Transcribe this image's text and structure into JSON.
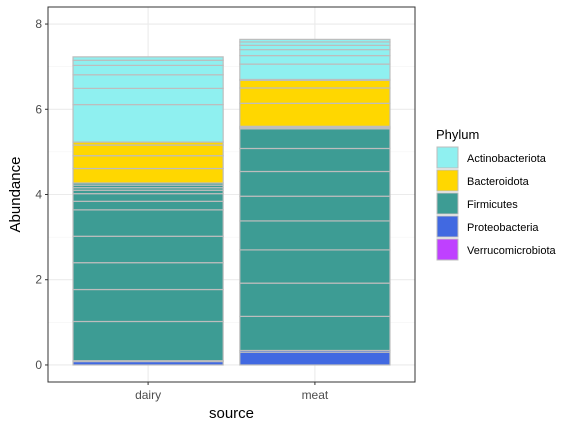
{
  "chart_data": {
    "type": "bar",
    "stacked": true,
    "categories": [
      "dairy",
      "meat"
    ],
    "xlabel": "source",
    "ylabel": "Abundance",
    "ylim": [
      0,
      8
    ],
    "yticks": [
      0,
      2,
      4,
      6,
      8
    ],
    "grid": true,
    "legend": {
      "title": "Phylum",
      "position": "right"
    },
    "series": [
      {
        "name": "Actinobacteriota",
        "color": "#8ff0f0",
        "segments": {
          "dairy": [
            0.88,
            0.38,
            0.32,
            0.22,
            0.12,
            0.08
          ],
          "meat": [
            0.36,
            0.2,
            0.14,
            0.1,
            0.08,
            0.06
          ]
        }
      },
      {
        "name": "Bacteroidota",
        "color": "#ffd700",
        "segments": {
          "dairy": [
            0.34,
            0.3,
            0.25,
            0.07
          ],
          "meat": [
            0.54,
            0.36,
            0.18,
            0.02
          ]
        }
      },
      {
        "name": "Firmicutes",
        "color": "#3d9c94",
        "segments": {
          "dairy": [
            0.92,
            0.75,
            0.63,
            0.62,
            0.62,
            0.2,
            0.18,
            0.08,
            0.06,
            0.06,
            0.05
          ],
          "meat": [
            0.8,
            0.78,
            0.78,
            0.68,
            0.58,
            0.58,
            0.54,
            0.46,
            0.02,
            0.02,
            0.02
          ]
        }
      },
      {
        "name": "Proteobacteria",
        "color": "#4169e1",
        "segments": {
          "dairy": [
            0.08,
            0.02
          ],
          "meat": [
            0.3,
            0.04
          ]
        }
      },
      {
        "name": "Verrucomicrobiota",
        "color": "#bf40ff",
        "segments": {
          "dairy": [],
          "meat": []
        }
      }
    ]
  }
}
